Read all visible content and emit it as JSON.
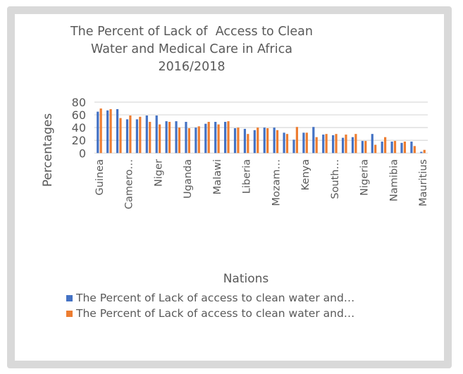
{
  "chart_data": {
    "type": "bar",
    "title_lines": [
      "The Percent of Lack of  Access to Clean",
      "Water and Medical Care in Africa",
      "2016/2018"
    ],
    "xlabel": "Nations",
    "ylabel": "Percentages",
    "ylim": [
      0,
      80
    ],
    "yticks": [
      0,
      20,
      40,
      60,
      80
    ],
    "ytick_labels": [
      "0",
      "20",
      "40",
      "60",
      "80"
    ],
    "grid": true,
    "legend_position": "bottom",
    "categories": [
      "Guinea",
      "",
      "",
      "Camero…",
      "",
      "",
      "Niger",
      "",
      "",
      "Uganda",
      "",
      "",
      "Malawi",
      "",
      "",
      "Liberia",
      "",
      "",
      "Mozam…",
      "",
      "",
      "Kenya",
      "",
      "",
      "South…",
      "",
      "",
      "Nigeria",
      "",
      "",
      "Namibia",
      "",
      "",
      "Mauritius"
    ],
    "series": [
      {
        "name": "The Percent of Lack of access to clean water and…",
        "color": "#4472c4",
        "values": [
          65,
          67,
          69,
          53,
          53,
          59,
          59,
          50,
          50,
          49,
          40,
          46,
          49,
          49,
          39,
          38,
          36,
          40,
          40,
          32,
          21,
          32,
          41,
          29,
          28,
          24,
          25,
          19,
          30,
          18,
          18,
          16,
          18,
          2
        ]
      },
      {
        "name": "The Percent of Lack of access to clean water and…",
        "color": "#ed7d31",
        "values": [
          70,
          69,
          55,
          59,
          57,
          49,
          45,
          49,
          40,
          39,
          42,
          49,
          45,
          50,
          40,
          30,
          40,
          39,
          36,
          30,
          41,
          32,
          25,
          30,
          30,
          29,
          30,
          19,
          13,
          25,
          19,
          18,
          11,
          5
        ]
      }
    ]
  }
}
